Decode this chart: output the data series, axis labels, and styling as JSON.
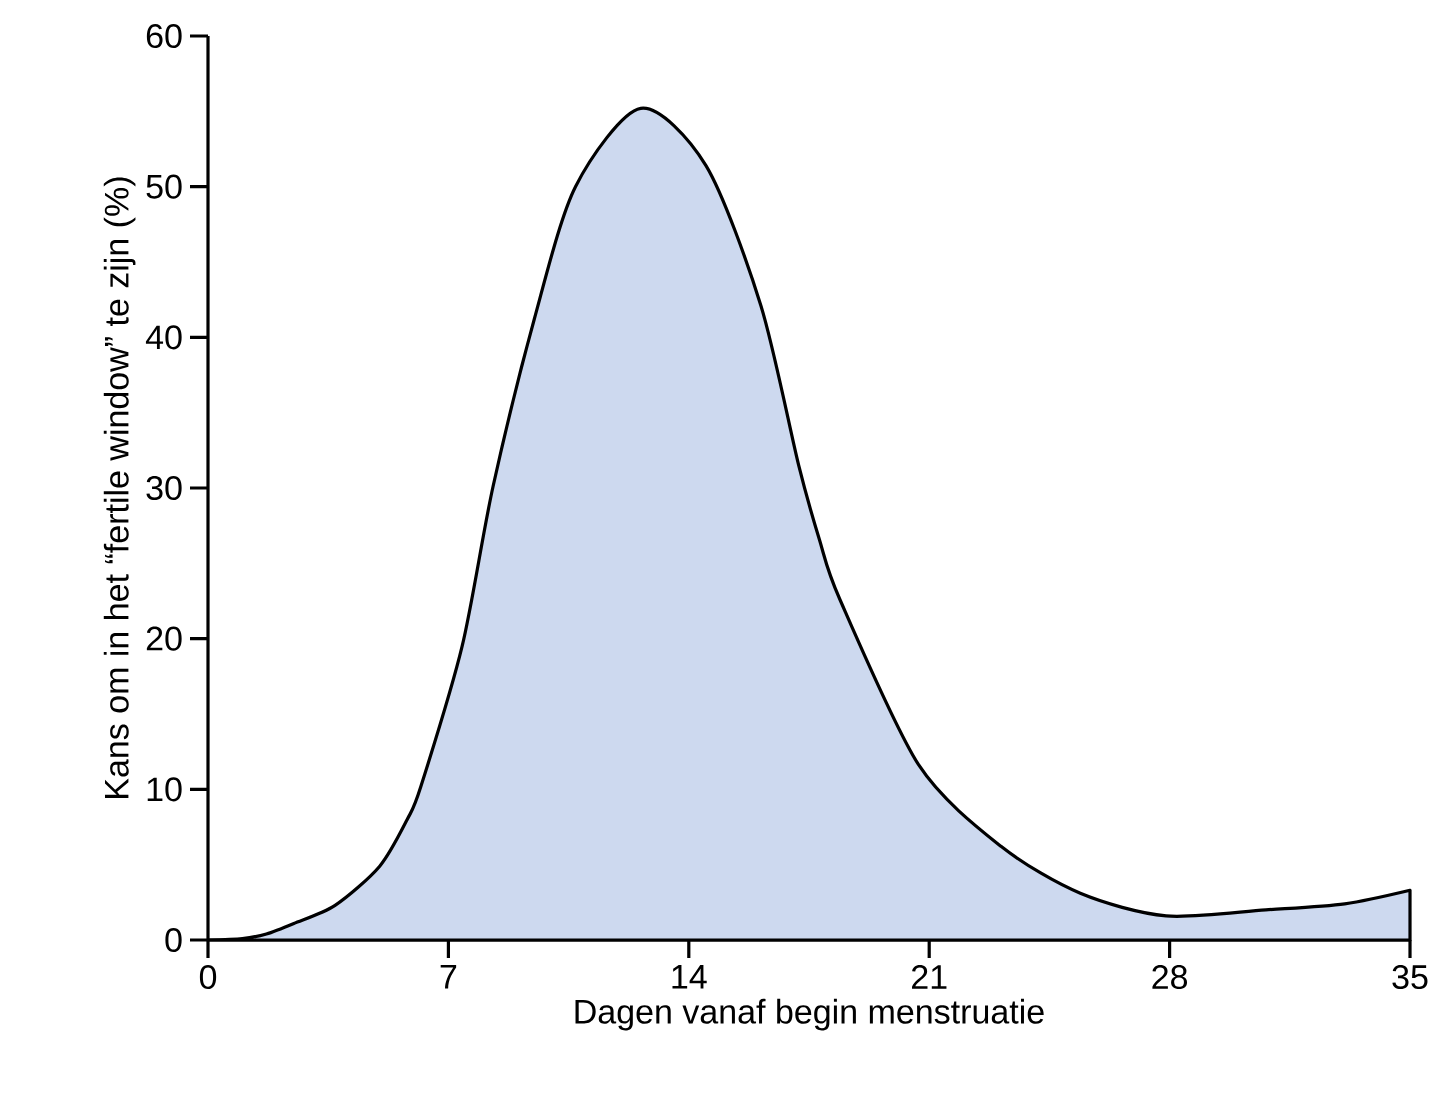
{
  "chart_data": {
    "type": "area",
    "xlabel": "Dagen vanaf begin menstruatie",
    "ylabel": "Kans om in het “fertile window” te zijn  (%)",
    "x": [
      0,
      1,
      1.7,
      2.5,
      3.7,
      5,
      5.8,
      6.2,
      7.4,
      8.3,
      9.5,
      10.7,
      12.6,
      14.5,
      16.1,
      17.2,
      17.8,
      18.4,
      20.7,
      23.1,
      25.4,
      27.9,
      30.8,
      33.1,
      35
    ],
    "series": [
      {
        "color": "#cdd9ef",
        "values": [
          0,
          0.1,
          0.4,
          1.1,
          2.3,
          4.9,
          8,
          10.2,
          19.5,
          30.1,
          41.2,
          50,
          55.2,
          51.4,
          42.1,
          31.5,
          26.6,
          22.6,
          11.6,
          6.2,
          3.1,
          1.6,
          2.0,
          2.4,
          3.3
        ]
      }
    ],
    "xlim": [
      0,
      35
    ],
    "ylim": [
      0,
      60
    ],
    "xticks": [
      0,
      7,
      14,
      21,
      28,
      35
    ],
    "yticks": [
      0,
      10,
      20,
      30,
      40,
      50,
      60
    ]
  }
}
